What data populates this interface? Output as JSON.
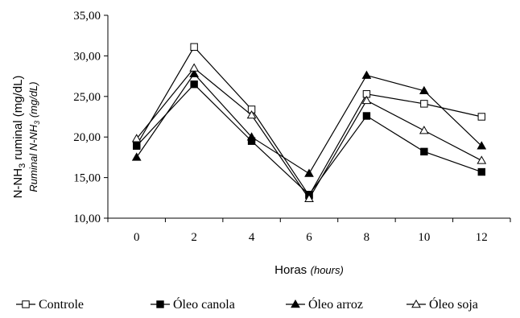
{
  "chart_data": {
    "type": "line",
    "x": [
      0,
      2,
      4,
      6,
      8,
      10,
      12
    ],
    "xticks": [
      "0",
      "2",
      "4",
      "6",
      "8",
      "10",
      "12"
    ],
    "ylim": [
      10,
      35
    ],
    "yticks": [
      "10,00",
      "15,00",
      "20,00",
      "25,00",
      "30,00",
      "35,00"
    ],
    "xlabel": "Horas",
    "xlabel_italic": "(hours)",
    "ylabel": {
      "prefix": "N-NH",
      "sub": "3",
      "suffix": " ruminal (mg/dL)",
      "italic_prefix": "Ruminal N-NH",
      "italic_sub": "3",
      "italic_suffix": " (mg/dL)"
    },
    "legend_position": "bottom",
    "series": [
      {
        "name": "Controle",
        "marker": "square-open",
        "values": [
          19.0,
          31.1,
          23.4,
          12.8,
          25.3,
          24.1,
          22.5
        ]
      },
      {
        "name": "Óleo canola",
        "marker": "square-filled",
        "values": [
          18.9,
          26.5,
          19.5,
          12.9,
          22.6,
          18.2,
          15.7
        ]
      },
      {
        "name": "Óleo arroz",
        "marker": "triangle-filled",
        "values": [
          17.5,
          27.8,
          20.0,
          15.5,
          27.6,
          25.7,
          18.9
        ]
      },
      {
        "name": "Óleo soja",
        "marker": "triangle-open",
        "values": [
          19.8,
          28.5,
          22.7,
          12.4,
          24.5,
          20.8,
          17.1
        ]
      }
    ]
  }
}
